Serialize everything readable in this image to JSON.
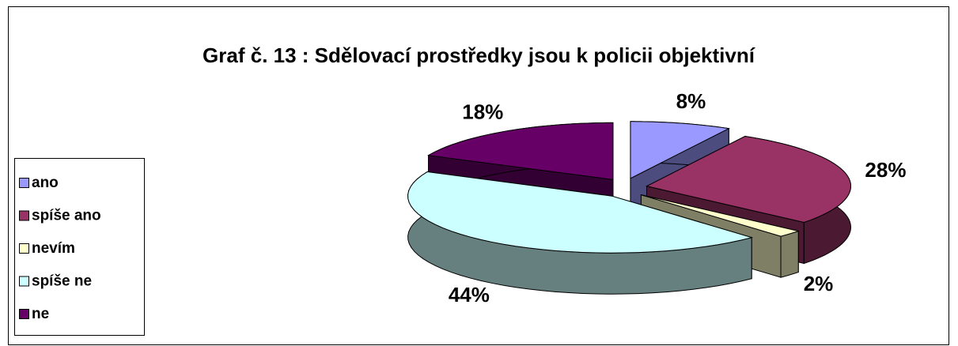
{
  "chart_data": {
    "type": "pie",
    "title": "Graf č. 13 : Sdělovací prostředky jsou k policii objektivní",
    "categories": [
      "ano",
      "spíše ano",
      "nevím",
      "spíše ne",
      "ne"
    ],
    "values": [
      8,
      28,
      2,
      44,
      18
    ],
    "value_labels": [
      "8%",
      "28%",
      "2%",
      "44%",
      "18%"
    ],
    "colors": [
      "#9999ff",
      "#993366",
      "#ffffcc",
      "#ccffff",
      "#660066"
    ],
    "legend": "left"
  }
}
